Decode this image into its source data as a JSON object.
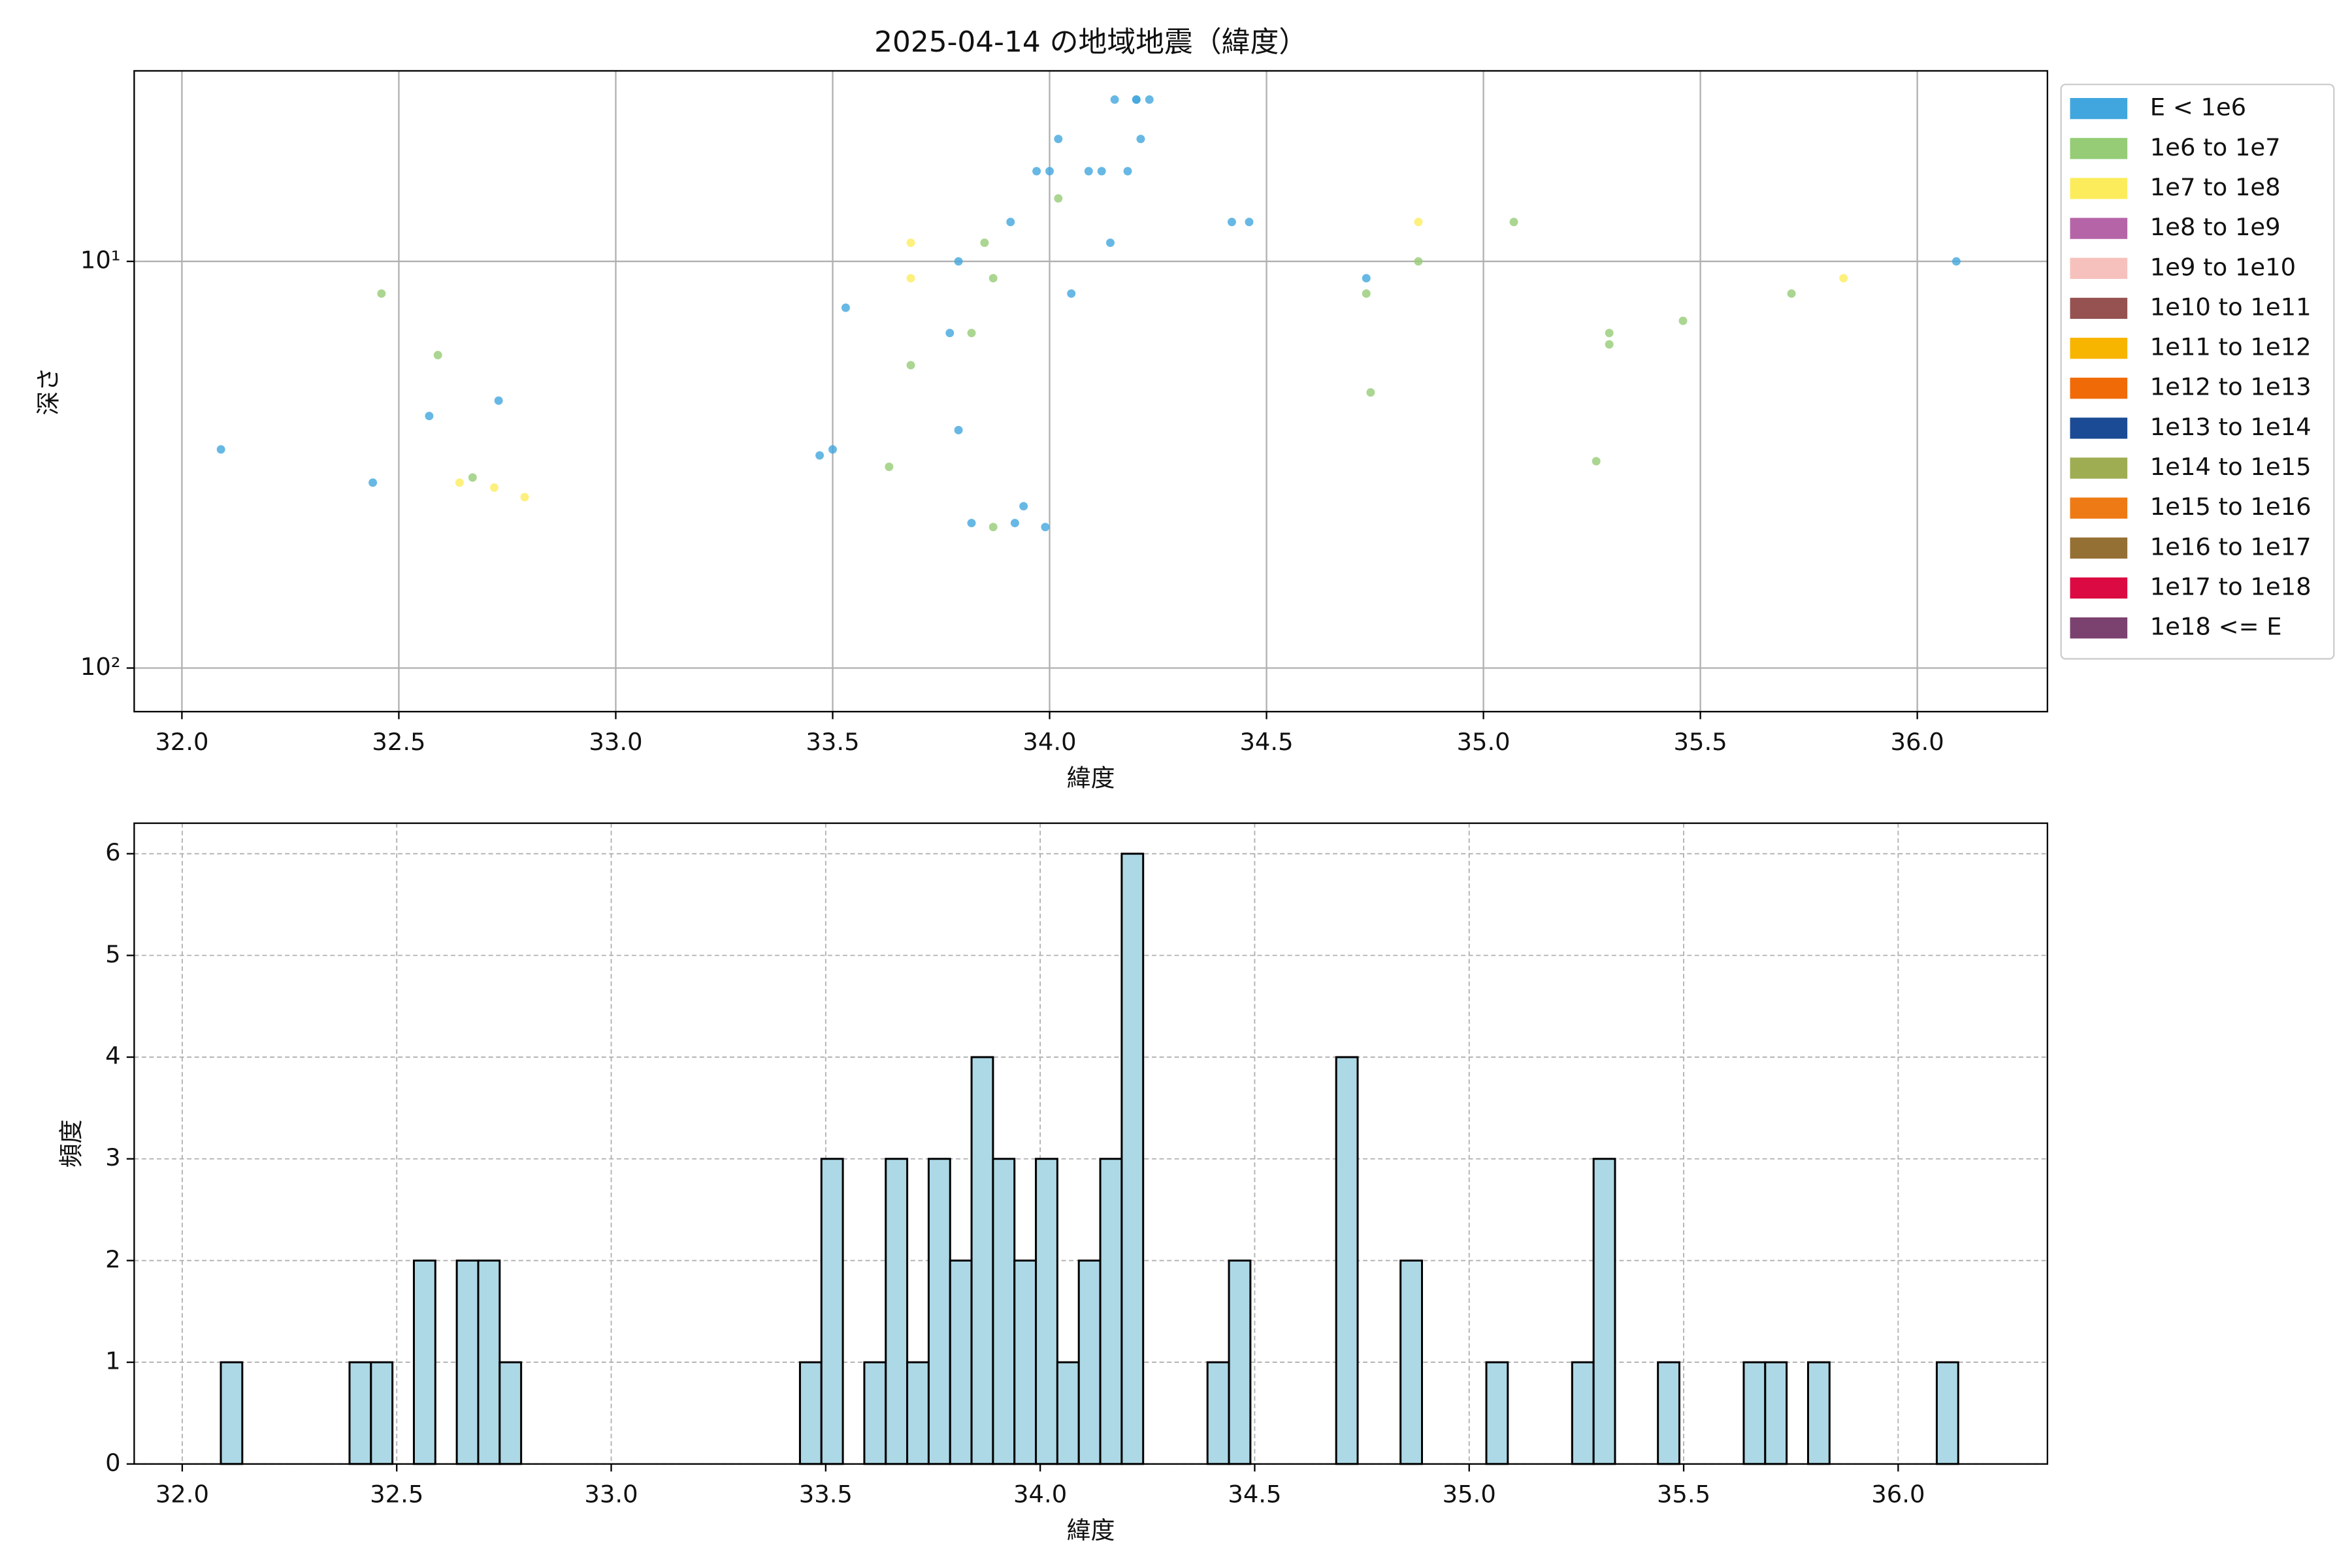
{
  "chart_data": [
    {
      "type": "scatter",
      "title": "2025-04-14 の地域地震（緯度）",
      "x_label": "緯度",
      "y_label": "深さ",
      "yscale": "log",
      "y_inverted": true,
      "grid": true,
      "legend": "outside right",
      "xlim": [
        31.89,
        36.3
      ],
      "ylim": [
        3.4,
        128
      ],
      "xticks": [
        {
          "value": 32,
          "label": "32.0"
        },
        {
          "value": 32.5,
          "label": "32.5"
        },
        {
          "value": 33,
          "label": "33.0"
        },
        {
          "value": 33.5,
          "label": "33.5"
        },
        {
          "value": 34,
          "label": "34.0"
        },
        {
          "value": 34.5,
          "label": "34.5"
        },
        {
          "value": 35,
          "label": "35.0"
        },
        {
          "value": 35.5,
          "label": "35.5"
        },
        {
          "value": 36,
          "label": "36.0"
        }
      ],
      "yticks": [
        {
          "value": 10,
          "label": "10¹"
        },
        {
          "value": 100,
          "label": "10²"
        }
      ],
      "series": [
        {
          "name": "E < 1e6",
          "color": "#41a6dd",
          "x": [
            32.09,
            32.44,
            32.57,
            32.73,
            33.47,
            33.5,
            33.53,
            33.77,
            33.79,
            33.79,
            33.82,
            33.91,
            33.92,
            33.94,
            33.97,
            33.99,
            34.0,
            34.02,
            34.05,
            34.09,
            34.12,
            34.14,
            34.15,
            34.18,
            34.2,
            34.21,
            34.2,
            34.23,
            34.42,
            34.46,
            34.73,
            36.09
          ],
          "values": [
            29,
            35,
            24,
            22,
            30,
            29,
            13,
            15,
            10,
            26,
            44,
            8,
            44,
            40,
            6,
            45,
            6,
            5,
            12,
            6,
            6,
            9,
            4,
            6,
            4,
            5,
            4,
            4,
            8,
            8,
            11,
            10
          ]
        },
        {
          "name": "1e6 to 1e7",
          "color": "#95cc75",
          "x": [
            32.46,
            32.59,
            32.67,
            33.63,
            33.68,
            33.82,
            33.85,
            33.87,
            33.87,
            34.02,
            34.73,
            34.74,
            34.85,
            35.07,
            35.26,
            35.29,
            35.29,
            35.46,
            35.71
          ],
          "values": [
            12,
            17,
            34,
            32,
            18,
            15,
            9,
            11,
            45,
            7,
            12,
            21,
            10,
            8,
            31,
            15,
            16,
            14,
            12
          ]
        },
        {
          "name": "1e7 to 1e8",
          "color": "#fcec5c",
          "x": [
            32.64,
            32.72,
            32.79,
            33.68,
            33.68,
            34.85,
            35.83
          ],
          "values": [
            35,
            36,
            38,
            11,
            9,
            8,
            11
          ]
        },
        {
          "name": "1e8 to 1e9",
          "color": "#b565a7",
          "x": [],
          "values": []
        },
        {
          "name": "1e9 to 1e10",
          "color": "#f6c1bc",
          "x": [],
          "values": []
        },
        {
          "name": "1e10 to 1e11",
          "color": "#955251",
          "x": [],
          "values": []
        },
        {
          "name": "1e11 to 1e12",
          "color": "#f7b500",
          "x": [],
          "values": []
        },
        {
          "name": "1e12 to 1e13",
          "color": "#f06a07",
          "x": [],
          "values": []
        },
        {
          "name": "1e13 to 1e14",
          "color": "#1b4b94",
          "x": [],
          "values": []
        },
        {
          "name": "1e14 to 1e15",
          "color": "#9ead52",
          "x": [],
          "values": []
        },
        {
          "name": "1e15 to 1e16",
          "color": "#ee7a15",
          "x": [],
          "values": []
        },
        {
          "name": "1e16 to 1e17",
          "color": "#957034",
          "x": [],
          "values": []
        },
        {
          "name": "1e17 to 1e18",
          "color": "#dc0a43",
          "x": [],
          "values": []
        },
        {
          "name": "1e18 <= E",
          "color": "#7b4270",
          "x": [],
          "values": []
        }
      ]
    },
    {
      "type": "histogram",
      "x_label": "緯度",
      "y_label": "頻度",
      "color": "#add8e6",
      "edgecolor": "#000000",
      "grid": "dashed",
      "xlim": [
        31.888,
        36.348
      ],
      "ylim": [
        0,
        6.3
      ],
      "xticks": [
        {
          "value": 32,
          "label": "32.0"
        },
        {
          "value": 32.5,
          "label": "32.5"
        },
        {
          "value": 33,
          "label": "33.0"
        },
        {
          "value": 33.5,
          "label": "33.5"
        },
        {
          "value": 34,
          "label": "34.0"
        },
        {
          "value": 34.5,
          "label": "34.5"
        },
        {
          "value": 35,
          "label": "35.0"
        },
        {
          "value": 35.5,
          "label": "35.5"
        },
        {
          "value": 36,
          "label": "36.0"
        }
      ],
      "yticks": [
        0,
        1,
        2,
        3,
        4,
        5,
        6
      ],
      "bins": [
        32.09,
        32.14,
        32.19,
        32.24,
        32.29,
        32.34,
        32.39,
        32.44,
        32.49,
        32.54,
        32.59,
        32.64,
        32.69,
        32.74,
        32.79,
        32.84,
        32.89,
        32.94,
        32.99,
        33.04,
        33.09,
        33.14,
        33.19,
        33.24,
        33.29,
        33.34,
        33.39,
        33.44,
        33.49,
        33.54,
        33.59,
        33.64,
        33.69,
        33.74,
        33.79,
        33.84,
        33.89,
        33.94,
        33.99,
        34.04,
        34.09,
        34.14,
        34.19,
        34.24,
        34.29,
        34.34,
        34.39,
        34.44,
        34.49,
        34.54,
        34.59,
        34.64,
        34.69,
        34.74,
        34.79,
        34.84,
        34.89,
        34.94,
        34.99,
        35.04,
        35.09,
        35.14,
        35.19,
        35.24,
        35.29,
        35.34,
        35.39,
        35.44,
        35.49,
        35.54,
        35.59,
        35.64,
        35.69,
        35.74,
        35.79,
        35.84,
        35.89,
        35.94,
        35.99,
        36.04,
        36.09,
        36.14
      ],
      "values": [
        1,
        0,
        0,
        0,
        0,
        0,
        1,
        1,
        0,
        2,
        0,
        2,
        2,
        1,
        0,
        0,
        0,
        0,
        0,
        0,
        0,
        0,
        0,
        0,
        0,
        0,
        0,
        1,
        3,
        0,
        1,
        3,
        1,
        3,
        2,
        4,
        3,
        2,
        3,
        1,
        2,
        3,
        6,
        0,
        0,
        0,
        1,
        2,
        0,
        0,
        0,
        0,
        4,
        0,
        0,
        2,
        0,
        0,
        0,
        1,
        0,
        0,
        0,
        1,
        3,
        0,
        0,
        1,
        0,
        0,
        0,
        1,
        1,
        0,
        1,
        0,
        0,
        0,
        0,
        0,
        1
      ]
    }
  ]
}
